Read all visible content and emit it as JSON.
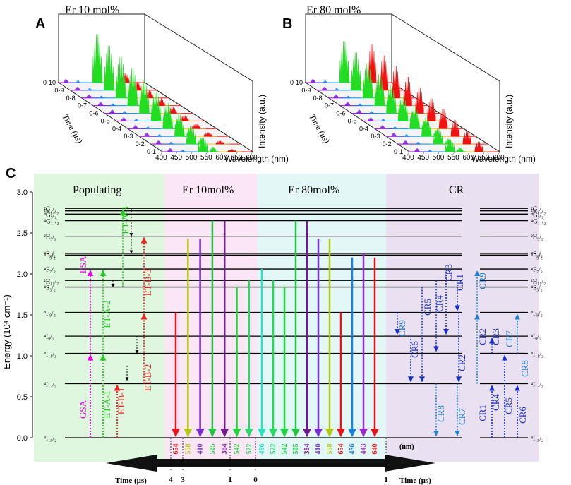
{
  "panel_a": {
    "letter": "A",
    "title": "Er 10 mol%",
    "time_label": "Time (μs)",
    "x_label": "Wavelength (nm)",
    "z_label": "Intensity (a.u.)",
    "x_ticks": [
      "400",
      "450",
      "500",
      "550",
      "600",
      "650",
      "700"
    ],
    "time_ticks": [
      "0-10",
      "0-9",
      "0-8",
      "0-7",
      "0-6",
      "0-5",
      "0-4",
      "0-3",
      "0-2",
      "0-1"
    ]
  },
  "panel_b": {
    "letter": "B",
    "title": "Er 80 mol%",
    "time_label": "Time (μs)",
    "x_label": "Wavelength (nm)",
    "z_label": "Intensity (a.u.)",
    "x_ticks": [
      "400",
      "450",
      "500",
      "550",
      "600",
      "650",
      "700"
    ],
    "time_ticks": [
      "0-10",
      "0-9",
      "0-8",
      "0-7",
      "0-6",
      "0-5",
      "0-4",
      "0-3",
      "0-2",
      "0-1"
    ]
  },
  "panel_c": {
    "letter": "C",
    "y_label": "Energy (10⁴ cm⁻¹)",
    "y_ticks": [
      "0.0",
      "0.5",
      "1.0",
      "1.5",
      "2.0",
      "2.5",
      "3.0"
    ],
    "sections": {
      "populating": "Populating",
      "er10": "Er 10mol%",
      "er80": "Er 80mol%",
      "cr": "CR"
    },
    "levels": [
      {
        "label": "⁴I₁₅/₂",
        "energy": 0.0
      },
      {
        "label": "⁴I₁₃/₂",
        "energy": 0.66
      },
      {
        "label": "⁴I₁₁/₂",
        "energy": 1.03
      },
      {
        "label": "⁴I₉/₂",
        "energy": 1.24
      },
      {
        "label": "⁴F₉/₂",
        "energy": 1.53
      },
      {
        "label": "⁴S₃/₂",
        "energy": 1.84
      },
      {
        "label": "²H₁₁/₂",
        "energy": 1.92
      },
      {
        "label": "⁴F₇/₂",
        "energy": 2.06
      },
      {
        "label": "⁴F₅/₂",
        "energy": 2.23
      },
      {
        "label": "⁴F₃/₂",
        "energy": 2.25
      },
      {
        "label": "²H₉/₂",
        "energy": 2.46
      },
      {
        "label": "⁴G₁₁/₂",
        "energy": 2.65
      },
      {
        "label": "⁴G₉/₂",
        "energy": 2.73
      },
      {
        "label": "²K₁₅/₂",
        "energy": 2.77
      },
      {
        "label": "²G₇/₂",
        "energy": 2.8
      }
    ],
    "process_labels": [
      "GSA",
      "ESA",
      "ET-A-1",
      "ET-A-2",
      "ET-A-3",
      "ET-B-1",
      "ET-B-2",
      "ET-B-3"
    ],
    "er10_emissions": [
      {
        "nm": "654",
        "color": "#e8141c",
        "from": 1.53
      },
      {
        "nm": "558",
        "color": "#b5c914",
        "from": 2.43
      },
      {
        "nm": "410",
        "color": "#7a2bd1",
        "from": 2.43
      },
      {
        "nm": "505",
        "color": "#22c444",
        "from": 2.65
      },
      {
        "nm": "384",
        "color": "#6e1c8c",
        "from": 2.65
      },
      {
        "nm": "542",
        "color": "#1ed63c",
        "from": 1.84
      },
      {
        "nm": "522",
        "color": "#2ad86a",
        "from": 1.92
      }
    ],
    "er80_emissions": [
      {
        "nm": "496",
        "color": "#2ee0c0",
        "from": 2.06
      },
      {
        "nm": "522",
        "color": "#27d860",
        "from": 1.92
      },
      {
        "nm": "542",
        "color": "#1ed63c",
        "from": 1.84
      },
      {
        "nm": "505",
        "color": "#22c444",
        "from": 2.65
      },
      {
        "nm": "384",
        "color": "#6e1c8c",
        "from": 2.65
      },
      {
        "nm": "410",
        "color": "#7a2bd1",
        "from": 2.43
      },
      {
        "nm": "558",
        "color": "#b5c914",
        "from": 2.43
      },
      {
        "nm": "654",
        "color": "#e8141c",
        "from": 1.53
      },
      {
        "nm": "456",
        "color": "#1d7fe0",
        "from": 2.2
      },
      {
        "nm": "443",
        "color": "#9a28d0",
        "from": 2.25
      },
      {
        "nm": "640",
        "color": "#e8141c",
        "from": 2.2
      }
    ],
    "nm_unit": "(nm)",
    "cr_labels_left": [
      "CR1",
      "CR3",
      "CR4",
      "CR5",
      "CR6",
      "CR7",
      "CR8",
      "CR9",
      "CR2"
    ],
    "cr_labels_right": [
      "CR1",
      "CR2",
      "CR3",
      "CR4",
      "CR5",
      "CR6",
      "CR7",
      "CR8",
      "CR9"
    ],
    "timeline": {
      "left_label": "Time (μs)",
      "right_label": "Time (μs)",
      "ticks": [
        "4",
        "3",
        "1",
        "0",
        "1"
      ]
    },
    "colors": {
      "populating_bg": "#dff7df",
      "er10_bg": "#fbe6f6",
      "er80_bg": "#e2f7f6",
      "cr_bg": "#e9e0f1"
    }
  }
}
